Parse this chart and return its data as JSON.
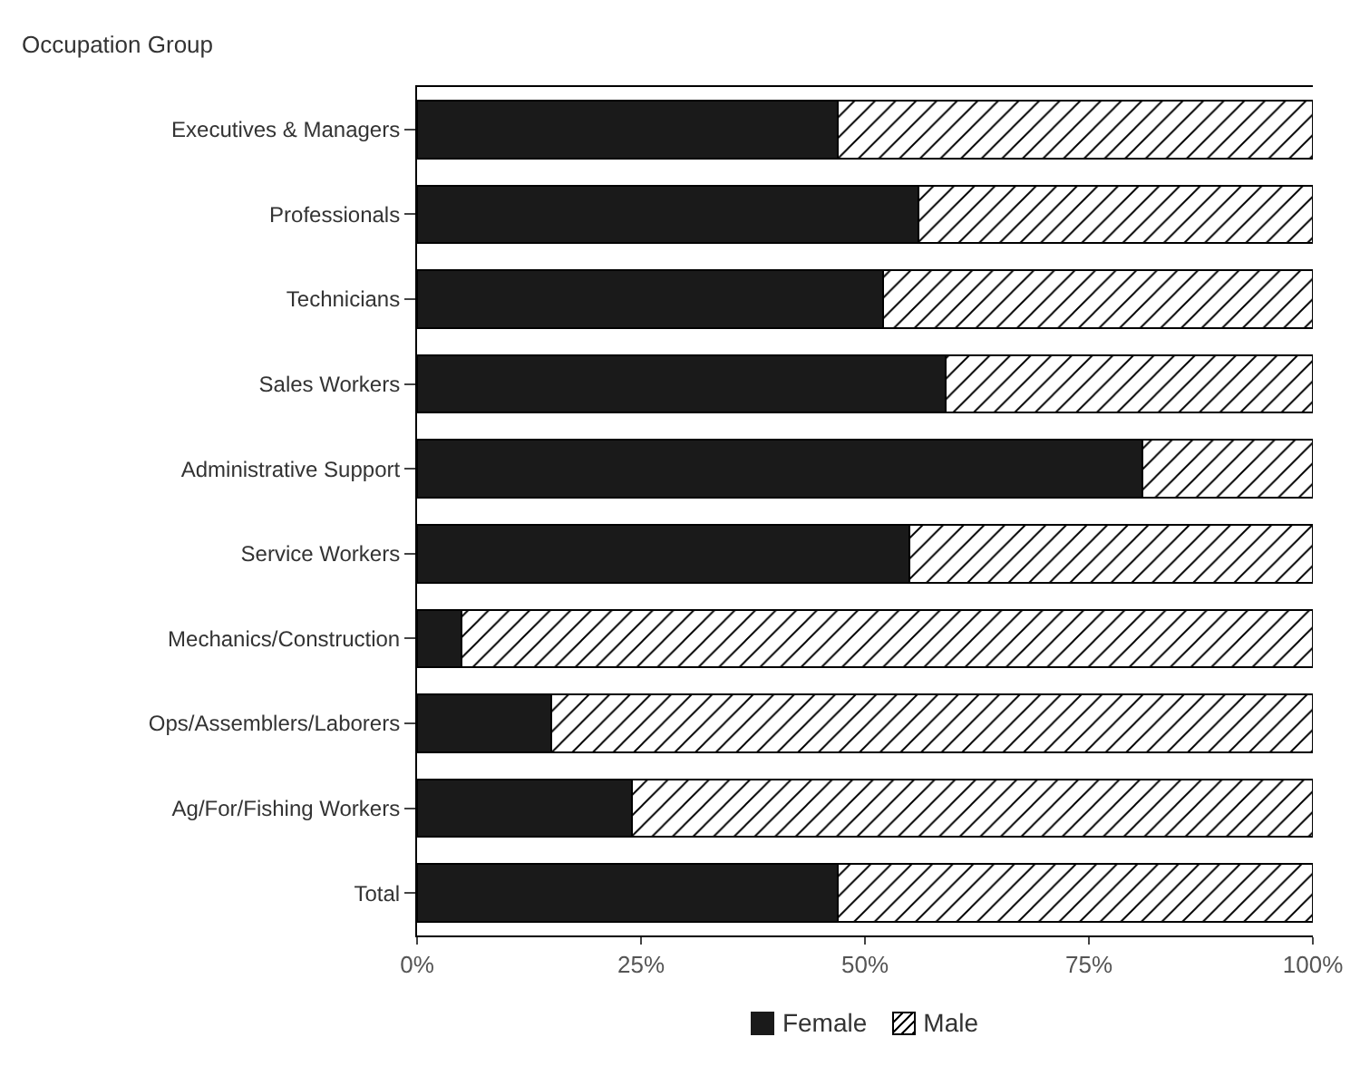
{
  "chart_data": {
    "type": "bar",
    "orientation": "horizontal",
    "stacked": true,
    "ylabel": "Occupation Group",
    "categories": [
      "Executives & Managers",
      "Professionals",
      "Technicians",
      "Sales Workers",
      "Administrative Support",
      "Service Workers",
      "Mechanics/Construction",
      "Ops/Assemblers/Laborers",
      "Ag/For/Fishing Workers",
      "Total"
    ],
    "series": [
      {
        "name": "Female",
        "color": "#1a1a1a",
        "values": [
          47,
          56,
          52,
          59,
          81,
          55,
          5,
          15,
          24,
          47
        ]
      },
      {
        "name": "Male",
        "color": "#000000",
        "values": [
          53,
          44,
          48,
          41,
          19,
          45,
          95,
          85,
          76,
          53
        ]
      }
    ],
    "xlim": [
      0,
      100
    ],
    "xticks": [
      {
        "value": 0,
        "label": "0%"
      },
      {
        "value": 25,
        "label": "25%"
      },
      {
        "value": 50,
        "label": "50%"
      },
      {
        "value": 75,
        "label": "75%"
      },
      {
        "value": 100,
        "label": "100%"
      }
    ],
    "grid": false,
    "legend": "bottom"
  }
}
